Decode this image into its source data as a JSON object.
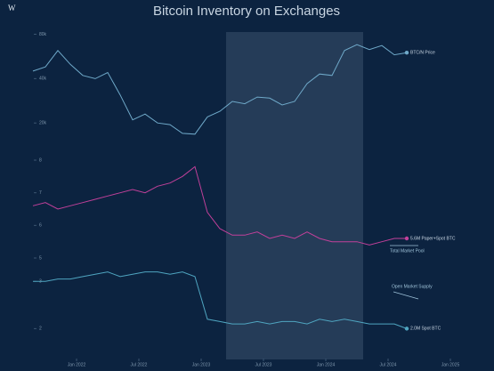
{
  "logo": "W",
  "title": "Bitcoin Inventory on Exchanges",
  "chart_data": [
    {
      "type": "line",
      "log": true,
      "ylim": [
        12000,
        90000
      ],
      "yticks": [
        {
          "value": 20000,
          "label": "20k"
        },
        {
          "value": 40000,
          "label": "40k"
        },
        {
          "value": 80000,
          "label": "80k"
        }
      ],
      "xlim": [
        2021.6,
        2025.1
      ],
      "xticks": [
        {
          "value": 2022,
          "label": "Jan 2022"
        },
        {
          "value": 2022.5,
          "label": "Jul 2022"
        },
        {
          "value": 2023,
          "label": "Jan 2023"
        },
        {
          "value": 2023.5,
          "label": "Jul 2023"
        },
        {
          "value": 2024,
          "label": "Jan 2024"
        },
        {
          "value": 2024.5,
          "label": "Jul 2024"
        },
        {
          "value": 2025,
          "label": "Jan 2025"
        }
      ],
      "highlight": [
        2023.2,
        2024.3
      ],
      "x": [
        2021.65,
        2021.75,
        2021.85,
        2021.95,
        2022.05,
        2022.15,
        2022.25,
        2022.35,
        2022.45,
        2022.55,
        2022.65,
        2022.75,
        2022.85,
        2022.95,
        2023.05,
        2023.15,
        2023.25,
        2023.35,
        2023.45,
        2023.55,
        2023.65,
        2023.75,
        2023.85,
        2023.95,
        2024.05,
        2024.15,
        2024.25,
        2024.35,
        2024.45,
        2024.55,
        2024.65
      ],
      "series": [
        {
          "name": "BTC/N Price",
          "color": "#6fa9c9",
          "values": [
            45000,
            48000,
            62000,
            50000,
            42000,
            40000,
            44000,
            31000,
            21000,
            23000,
            20000,
            19500,
            17000,
            16800,
            22000,
            24000,
            28000,
            27000,
            30000,
            29500,
            26500,
            28000,
            37000,
            43000,
            42000,
            62000,
            68000,
            63000,
            67000,
            58000,
            60000
          ]
        }
      ]
    },
    {
      "type": "line",
      "ylim": [
        5,
        8
      ],
      "yticks": [
        5,
        6,
        7,
        8
      ],
      "x": [
        2021.65,
        2021.75,
        2021.85,
        2021.95,
        2022.05,
        2022.15,
        2022.25,
        2022.35,
        2022.45,
        2022.55,
        2022.65,
        2022.75,
        2022.85,
        2022.95,
        2023.05,
        2023.15,
        2023.25,
        2023.35,
        2023.45,
        2023.55,
        2023.65,
        2023.75,
        2023.85,
        2023.95,
        2024.05,
        2024.15,
        2024.25,
        2024.35,
        2024.45,
        2024.55,
        2024.65
      ],
      "series": [
        {
          "name": "Paper+Spot BTC",
          "color": "#c2409a",
          "values": [
            6.6,
            6.7,
            6.5,
            6.6,
            6.7,
            6.8,
            6.9,
            7.0,
            7.1,
            7.0,
            7.2,
            7.3,
            7.5,
            7.8,
            6.4,
            5.9,
            5.7,
            5.7,
            5.8,
            5.6,
            5.7,
            5.6,
            5.8,
            5.6,
            5.5,
            5.5,
            5.5,
            5.4,
            5.5,
            5.6,
            5.6
          ],
          "end_label": "5.6M Paper+Spot BTC"
        }
      ],
      "annotations": [
        "Total Market Pool"
      ]
    },
    {
      "type": "line",
      "ylim": [
        1.8,
        3.4
      ],
      "yticks": [
        2,
        3
      ],
      "x": [
        2021.65,
        2021.75,
        2021.85,
        2021.95,
        2022.05,
        2022.15,
        2022.25,
        2022.35,
        2022.45,
        2022.55,
        2022.65,
        2022.75,
        2022.85,
        2022.95,
        2023.05,
        2023.15,
        2023.25,
        2023.35,
        2023.45,
        2023.55,
        2023.65,
        2023.75,
        2023.85,
        2023.95,
        2024.05,
        2024.15,
        2024.25,
        2024.35,
        2024.45,
        2024.55,
        2024.65
      ],
      "series": [
        {
          "name": "Spot BTC",
          "color": "#4fa5c0",
          "values": [
            3.0,
            3.0,
            3.05,
            3.05,
            3.1,
            3.15,
            3.2,
            3.1,
            3.15,
            3.2,
            3.2,
            3.15,
            3.2,
            3.1,
            2.2,
            2.15,
            2.1,
            2.1,
            2.15,
            2.1,
            2.15,
            2.15,
            2.1,
            2.2,
            2.15,
            2.2,
            2.15,
            2.1,
            2.1,
            2.1,
            2.0
          ],
          "end_label": "2.0M Spot BTC"
        }
      ],
      "annotations": [
        "Open Market Supply"
      ]
    }
  ]
}
